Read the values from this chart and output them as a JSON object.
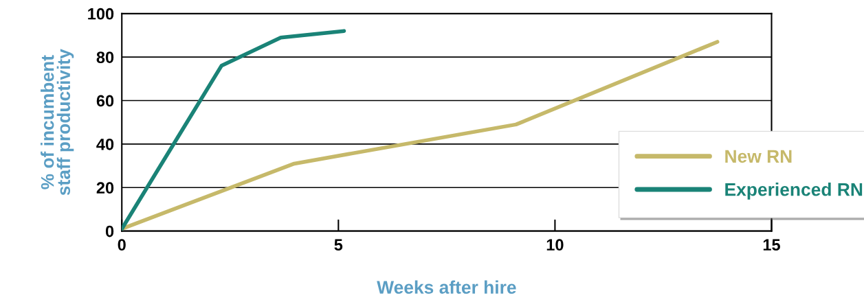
{
  "chart_data": {
    "type": "line",
    "xlabel": "Weeks after hire",
    "ylabel": "% of incumbent\nstaff productivity",
    "series": [
      {
        "name": "New RN",
        "color": "#c6b96a",
        "x": [
          0,
          3.98,
          9.1,
          13.75
        ],
        "values": [
          1,
          31,
          49,
          87
        ]
      },
      {
        "name": "Experienced RN",
        "color": "#1a8377",
        "x": [
          0,
          2.3,
          3.67,
          5.13
        ],
        "values": [
          1,
          76,
          89,
          92
        ]
      }
    ],
    "xlim": [
      0,
      15
    ],
    "xticks": [
      0,
      5,
      10,
      15
    ],
    "ylim": [
      0,
      100
    ],
    "yticks": [
      0,
      20,
      40,
      60,
      80,
      100
    ],
    "grid": "y",
    "legend": "right",
    "marker": "none",
    "line_style": "solid"
  }
}
